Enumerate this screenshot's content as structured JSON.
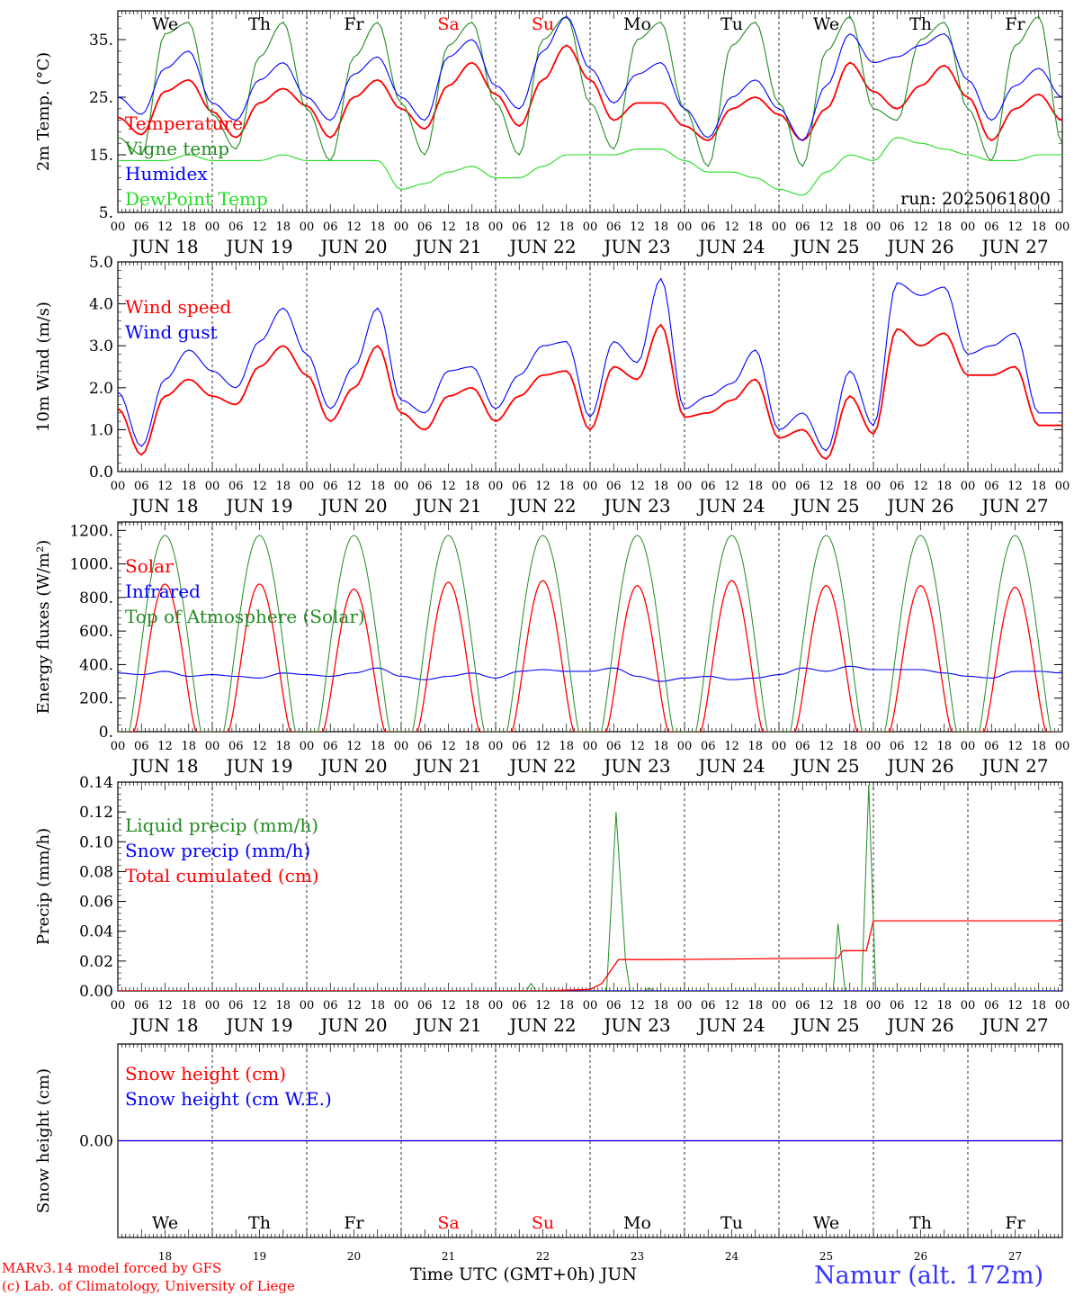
{
  "days": [
    "JUN 18",
    "JUN 19",
    "JUN 20",
    "JUN 21",
    "JUN 22",
    "JUN 23",
    "JUN 24",
    "JUN 25",
    "JUN 26",
    "JUN 27"
  ],
  "weekdays": [
    "We",
    "Th",
    "Fr",
    "Sa",
    "Su",
    "Mo",
    "Tu",
    "We",
    "Th",
    "Fr"
  ],
  "weekend_flags": [
    false,
    false,
    false,
    true,
    true,
    false,
    false,
    false,
    false,
    false
  ],
  "day_numbers": [
    "18",
    "19",
    "20",
    "21",
    "22",
    "23",
    "24",
    "25",
    "26",
    "27"
  ],
  "hour_ticks": [
    "00",
    "06",
    "12",
    "18"
  ],
  "run_label": "run: 2025061800",
  "footer": {
    "model": "MARv3.14 model forced by GFS",
    "lab": "(c) Lab. of Climatology, University of Liege",
    "xlabel": "Time UTC (GMT+0h) JUN",
    "station": "Namur (alt. 172m)"
  },
  "colors": {
    "red": "#ff0000",
    "green": "#228b22",
    "blue": "#0000ff",
    "lime": "#22dd22",
    "axis": "#000000"
  },
  "chart_data": [
    {
      "type": "line",
      "ylabel": "2m Temp. (°C)",
      "ylim": [
        5,
        40
      ],
      "yticks": [
        "5.",
        "15.",
        "25.",
        "35."
      ],
      "yvals": [
        5,
        15,
        25,
        35
      ],
      "series": [
        {
          "name": "Temperature",
          "color": "red",
          "values": [
            21.5,
            18.5,
            26,
            28,
            22.5,
            18,
            24,
            26.5,
            23.5,
            18,
            25,
            28,
            23,
            19.5,
            27,
            31,
            25.5,
            20,
            28,
            34,
            28,
            21,
            24,
            24,
            20,
            17.5,
            23,
            25,
            22,
            17.5,
            23,
            31,
            26,
            23,
            27,
            30.5,
            25,
            17.5,
            23,
            25.5,
            21
          ]
        },
        {
          "name": "Vigne temp",
          "color": "green",
          "values": [
            18,
            15,
            36,
            38,
            22,
            16,
            32,
            38,
            23,
            14,
            32,
            38,
            24,
            15,
            34,
            38,
            24,
            15,
            35,
            39,
            24,
            16,
            35,
            38,
            23,
            13,
            34,
            38,
            24,
            13,
            33,
            39,
            23,
            21,
            35,
            38,
            23,
            14,
            34,
            39,
            17
          ]
        },
        {
          "name": "Humidex",
          "color": "blue",
          "values": [
            25,
            22,
            30,
            33,
            24,
            21,
            28,
            31,
            25,
            21,
            29,
            32,
            25,
            21,
            32,
            35,
            27,
            23,
            33,
            39,
            30,
            24,
            29,
            31,
            23,
            18,
            25,
            28,
            23,
            17.5,
            27,
            36,
            31,
            32,
            34,
            36,
            28,
            21,
            27,
            30,
            25
          ]
        },
        {
          "name": "DewPoint Temp",
          "color": "lime",
          "values": [
            14,
            14,
            14,
            15,
            14,
            14,
            14,
            15,
            14,
            14,
            14,
            14,
            9,
            10,
            12,
            13,
            11,
            11,
            13,
            15,
            15,
            15,
            16,
            16,
            14,
            12,
            12,
            11,
            9,
            8,
            12,
            15,
            14,
            18,
            17,
            16,
            15,
            14,
            14,
            15,
            15
          ]
        }
      ]
    },
    {
      "type": "line",
      "ylabel": "10m Wind (m/s)",
      "ylim": [
        0,
        5
      ],
      "yticks": [
        "0.0",
        "1.0",
        "2.0",
        "3.0",
        "4.0",
        "5.0"
      ],
      "yvals": [
        0,
        1,
        2,
        3,
        4,
        5
      ],
      "series": [
        {
          "name": "Wind speed",
          "color": "red",
          "values": [
            1.5,
            0.4,
            1.8,
            2.2,
            1.8,
            1.6,
            2.5,
            3.0,
            2.3,
            1.2,
            2.0,
            3.0,
            1.4,
            1.0,
            1.8,
            2.0,
            1.2,
            1.8,
            2.3,
            2.4,
            1.0,
            2.5,
            2.2,
            3.5,
            1.3,
            1.4,
            1.7,
            2.2,
            0.8,
            1.0,
            0.3,
            1.8,
            0.9,
            3.4,
            3.0,
            3.3,
            2.3,
            2.3,
            2.5,
            1.1,
            1.1
          ]
        },
        {
          "name": "Wind gust",
          "color": "blue",
          "values": [
            1.9,
            0.6,
            2.2,
            2.9,
            2.4,
            2.0,
            3.1,
            3.9,
            2.8,
            1.5,
            2.5,
            3.9,
            1.7,
            1.4,
            2.4,
            2.5,
            1.5,
            2.3,
            3.0,
            3.1,
            1.3,
            3.1,
            2.6,
            4.6,
            1.5,
            1.8,
            2.1,
            2.9,
            1.0,
            1.4,
            0.5,
            2.4,
            1.1,
            4.5,
            4.2,
            4.4,
            2.8,
            3.0,
            3.3,
            1.4,
            1.4
          ]
        }
      ]
    },
    {
      "type": "line",
      "ylabel": "Energy fluxes (W/m²)",
      "ylim": [
        0,
        1250
      ],
      "yticks": [
        "0.",
        "200.",
        "400.",
        "600.",
        "800.",
        "1000.",
        "1200."
      ],
      "yvals": [
        0,
        200,
        400,
        600,
        800,
        1000,
        1200
      ],
      "series": [
        {
          "name": "Solar",
          "color": "red",
          "peaks": [
            880,
            880,
            850,
            890,
            900,
            870,
            900,
            870,
            870,
            860
          ]
        },
        {
          "name": "Infrared",
          "color": "blue",
          "values": [
            350,
            340,
            360,
            330,
            340,
            330,
            320,
            350,
            340,
            330,
            350,
            380,
            330,
            310,
            330,
            350,
            320,
            360,
            370,
            360,
            360,
            380,
            330,
            300,
            320,
            330,
            310,
            320,
            340,
            380,
            360,
            390,
            370,
            370,
            370,
            350,
            330,
            320,
            360,
            360,
            350
          ]
        },
        {
          "name": "Top of Atmosphere (Solar)",
          "color": "green",
          "peak": 1170
        }
      ]
    },
    {
      "type": "line",
      "ylabel": "Precip (mm/h)",
      "ylim": [
        0,
        0.14
      ],
      "yticks": [
        "0.00",
        "0.02",
        "0.04",
        "0.06",
        "0.08",
        "0.10",
        "0.12",
        "0.14"
      ],
      "yvals": [
        0,
        0.02,
        0.04,
        0.06,
        0.08,
        0.1,
        0.12,
        0.14
      ],
      "series": [
        {
          "name": "Liquid precip (mm/h)",
          "color": "green",
          "points": [
            [
              0,
              0
            ],
            [
              17.3,
              0
            ],
            [
              17.5,
              0.005
            ],
            [
              17.7,
              0
            ],
            [
              20.7,
              0
            ],
            [
              21.1,
              0.12
            ],
            [
              21.5,
              0.02
            ],
            [
              21.7,
              0
            ],
            [
              22.3,
              0
            ],
            [
              22.5,
              0.002
            ],
            [
              22.7,
              0
            ],
            [
              30.3,
              0
            ],
            [
              30.5,
              0.045
            ],
            [
              30.8,
              0
            ],
            [
              31.5,
              0
            ],
            [
              31.8,
              0.138
            ],
            [
              32.1,
              0
            ],
            [
              40,
              0
            ]
          ]
        },
        {
          "name": "Snow precip (mm/h)",
          "color": "blue",
          "points": [
            [
              0,
              0
            ],
            [
              40,
              0
            ]
          ]
        },
        {
          "name": "Total cumulated (cm)",
          "color": "red",
          "points": [
            [
              0,
              0
            ],
            [
              18,
              0
            ],
            [
              20,
              0.001
            ],
            [
              20.5,
              0.005
            ],
            [
              21.2,
              0.021
            ],
            [
              23,
              0.021
            ],
            [
              30.5,
              0.022
            ],
            [
              30.7,
              0.027
            ],
            [
              31.7,
              0.027
            ],
            [
              32.0,
              0.047
            ],
            [
              40,
              0.047
            ]
          ]
        }
      ]
    },
    {
      "type": "line",
      "ylabel": "Snow height (cm)",
      "ylim": [
        -1,
        1
      ],
      "yticks": [
        "0.00"
      ],
      "yvals": [
        0
      ],
      "series": [
        {
          "name": "Snow height (cm)",
          "color": "red",
          "values": [
            0,
            0
          ]
        },
        {
          "name": "Snow height (cm W.E.)",
          "color": "blue",
          "values": [
            0,
            0
          ]
        }
      ]
    }
  ]
}
